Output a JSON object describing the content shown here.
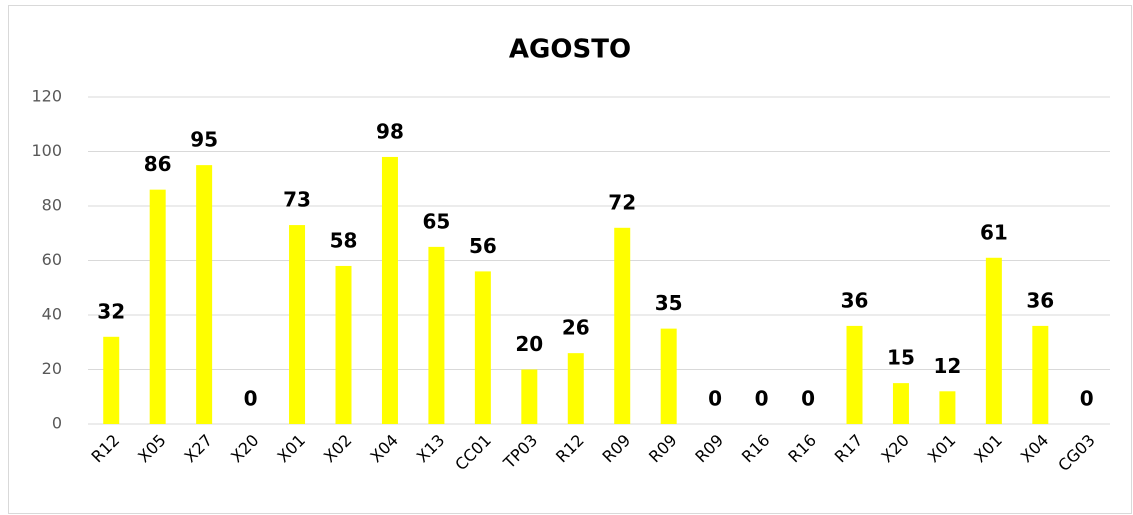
{
  "chart_data": {
    "type": "bar",
    "title": "AGOSTO",
    "categories": [
      "R12",
      "X05",
      "X27",
      "X20",
      "X01",
      "X02",
      "X04",
      "X13",
      "CC01",
      "TP03",
      "R12",
      "R09",
      "R09",
      "R09",
      "R16",
      "R16",
      "R17",
      "X20",
      "X01",
      "X01",
      "X04",
      "CG03"
    ],
    "values": [
      32,
      86,
      95,
      0,
      73,
      58,
      98,
      65,
      56,
      20,
      26,
      72,
      35,
      0,
      0,
      0,
      36,
      15,
      12,
      61,
      36,
      0
    ],
    "color": "#ffff00",
    "ylim": [
      0,
      120
    ],
    "yticks": [
      0,
      20,
      40,
      60,
      80,
      100,
      120
    ],
    "grid": true
  }
}
